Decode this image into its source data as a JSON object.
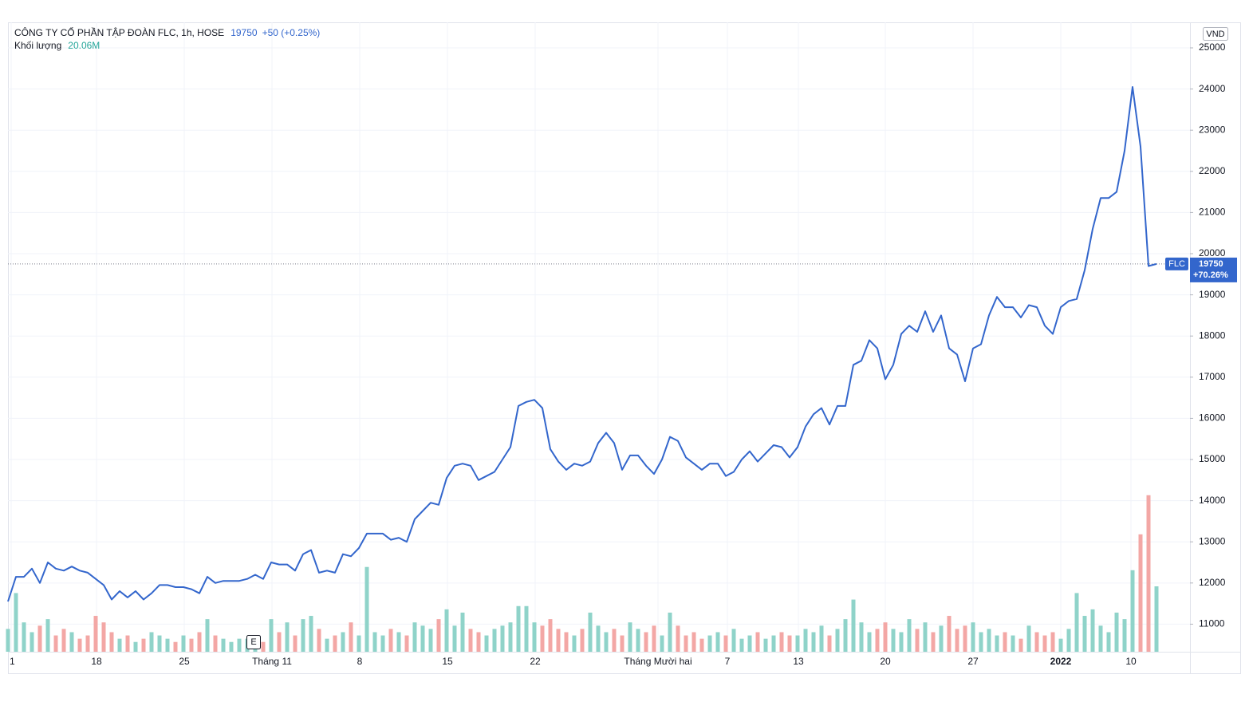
{
  "chart_data": {
    "type": "line",
    "title": "CÔNG TY CỔ PHẦN TẬP ĐOÀN FLC, 1h, HOSE",
    "change": "+50 (+0.25%)",
    "change_total": "+70.26%",
    "currency": "VND",
    "volume_value": "20.06M",
    "event_marker": {
      "label": "E",
      "x": 30.8
    },
    "grid": true,
    "xlim": [
      0,
      148.2
    ],
    "xticks": [
      {
        "value": 0.4,
        "label": "1"
      },
      {
        "value": 11.1,
        "label": "18"
      },
      {
        "value": 22.1,
        "label": "25"
      },
      {
        "value": 33.1,
        "label": "Tháng 11"
      },
      {
        "value": 44.1,
        "label": "8"
      },
      {
        "value": 55.1,
        "label": "15"
      },
      {
        "value": 66.1,
        "label": "22"
      },
      {
        "value": 81.5,
        "label": "Tháng Mười hai"
      },
      {
        "value": 90.2,
        "label": "7"
      },
      {
        "value": 99.1,
        "label": "13"
      },
      {
        "value": 110,
        "label": "20"
      },
      {
        "value": 121,
        "label": "27"
      },
      {
        "value": 132,
        "label": "2022"
      },
      {
        "value": 140.8,
        "label": "10"
      }
    ],
    "ylim": [
      10330,
      25620
    ],
    "yticks": [
      11000,
      12000,
      13000,
      14000,
      15000,
      16000,
      17000,
      18000,
      19000,
      20000,
      21000,
      22000,
      23000,
      24000,
      25000
    ],
    "volume_ylim": [
      0,
      193000000.0
    ],
    "series": [
      {
        "name": "FLC",
        "color": "#3366cc",
        "values": [
          11550,
          12150,
          12150,
          12350,
          12000,
          12500,
          12350,
          12300,
          12400,
          12300,
          12250,
          12100,
          11950,
          11600,
          11800,
          11650,
          11800,
          11600,
          11750,
          11950,
          11950,
          11900,
          11900,
          11850,
          11750,
          12150,
          12000,
          12050,
          12050,
          12050,
          12100,
          12200,
          12100,
          12500,
          12450,
          12450,
          12300,
          12700,
          12800,
          12250,
          12300,
          12250,
          12700,
          12650,
          12850,
          13200,
          13200,
          13200,
          13050,
          13100,
          13000,
          13550,
          13750,
          13950,
          13900,
          14550,
          14850,
          14900,
          14850,
          14500,
          14600,
          14700,
          15000,
          15300,
          16300,
          16400,
          16450,
          16250,
          15250,
          14950,
          14750,
          14900,
          14850,
          14950,
          15400,
          15650,
          15400,
          14750,
          15100,
          15100,
          14850,
          14650,
          15000,
          15550,
          15450,
          15050,
          14900,
          14750,
          14900,
          14900,
          14600,
          14700,
          15000,
          15200,
          14950,
          15150,
          15350,
          15300,
          15050,
          15300,
          15800,
          16100,
          16250,
          15850,
          16300,
          16300,
          17300,
          17400,
          17900,
          17700,
          16950,
          17300,
          18050,
          18250,
          18100,
          18600,
          18100,
          18500,
          17700,
          17550,
          16900,
          17700,
          17800,
          18500,
          18950,
          18700,
          18700,
          18450,
          18750,
          18700,
          18250,
          18050,
          18700,
          18850,
          18900,
          19600,
          20600,
          21350,
          21350,
          21500,
          22500,
          24050,
          22600,
          19700,
          19750
        ]
      },
      {
        "name": "Khối lượng",
        "up_color": "#8fd3c9",
        "down_color": "#f3a7a5",
        "values": [
          7000000.0,
          18000000.0,
          9000000.0,
          6000000.0,
          8000000.0,
          10000000.0,
          5000000.0,
          7000000.0,
          6000000.0,
          4000000.0,
          5000000.0,
          11000000.0,
          9000000.0,
          6000000.0,
          4000000.0,
          5000000.0,
          3000000.0,
          4000000.0,
          6000000.0,
          5000000.0,
          4000000.0,
          3000000.0,
          5000000.0,
          4000000.0,
          6000000.0,
          10000000.0,
          5000000.0,
          4000000.0,
          3000000.0,
          4000000.0,
          4000000.0,
          5000000.0,
          3000000.0,
          10000000.0,
          6000000.0,
          9000000.0,
          5000000.0,
          10000000.0,
          11000000.0,
          7000000.0,
          4000000.0,
          5000000.0,
          6000000.0,
          9000000.0,
          5000000.0,
          26000000.0,
          6000000.0,
          5000000.0,
          7000000.0,
          6000000.0,
          5000000.0,
          9000000.0,
          8000000.0,
          7000000.0,
          10000000.0,
          13000000.0,
          8000000.0,
          12000000.0,
          7000000.0,
          6000000.0,
          5000000.0,
          7000000.0,
          8000000.0,
          9000000.0,
          14000000.0,
          14000000.0,
          9000000.0,
          8000000.0,
          10000000.0,
          7000000.0,
          6000000.0,
          5000000.0,
          7000000.0,
          12000000.0,
          8000000.0,
          6000000.0,
          7000000.0,
          5000000.0,
          9000000.0,
          7000000.0,
          6000000.0,
          8000000.0,
          5000000.0,
          12000000.0,
          8000000.0,
          5000000.0,
          6000000.0,
          4000000.0,
          5000000.0,
          6000000.0,
          5000000.0,
          7000000.0,
          4000000.0,
          5000000.0,
          6000000.0,
          4000000.0,
          5000000.0,
          6000000.0,
          5000000.0,
          5000000.0,
          7000000.0,
          6000000.0,
          8000000.0,
          5000000.0,
          7000000.0,
          10000000.0,
          16000000.0,
          9000000.0,
          6000000.0,
          7000000.0,
          9000000.0,
          7000000.0,
          6000000.0,
          10000000.0,
          7000000.0,
          9000000.0,
          6000000.0,
          8000000.0,
          11000000.0,
          7000000.0,
          8000000.0,
          9000000.0,
          6000000.0,
          7000000.0,
          5000000.0,
          6000000.0,
          5000000.0,
          4000000.0,
          8000000.0,
          6000000.0,
          5000000.0,
          6000000.0,
          4000000.0,
          7000000.0,
          18000000.0,
          11000000.0,
          13000000.0,
          8000000.0,
          6000000.0,
          12000000.0,
          10000000.0,
          25000000.0,
          36000000.0,
          48000000.0,
          20060000.0
        ]
      }
    ]
  }
}
